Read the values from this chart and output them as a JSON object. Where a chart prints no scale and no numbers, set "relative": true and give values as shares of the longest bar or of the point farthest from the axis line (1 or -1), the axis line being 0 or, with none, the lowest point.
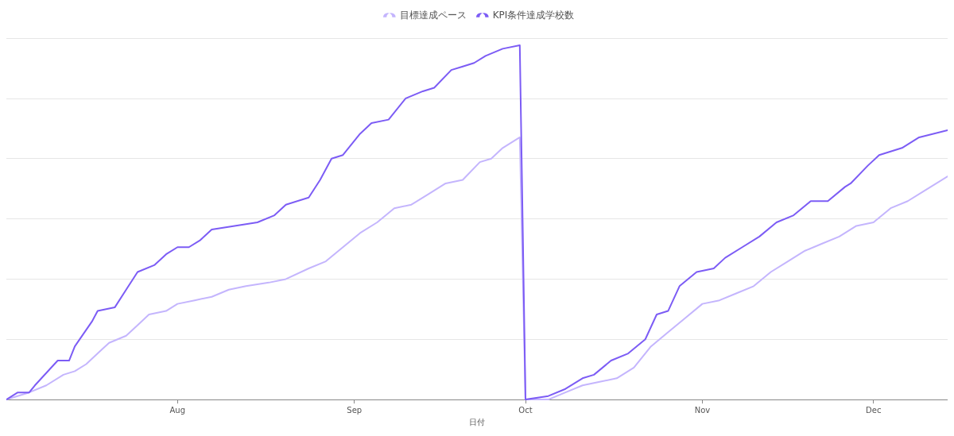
{
  "chart_data": {
    "type": "line",
    "relative": true,
    "xlabel": "日付",
    "legend": "top",
    "grid": "y",
    "tick_labels": "x",
    "xlim": [
      "--07-02",
      "--12-14"
    ],
    "xticks": [
      {
        "value": "--08-01",
        "label": "Aug"
      },
      {
        "value": "--09-01",
        "label": "Sep"
      },
      {
        "value": "--10-01",
        "label": "Oct"
      },
      {
        "value": "--11-01",
        "label": "Nov"
      },
      {
        "value": "--12-01",
        "label": "Dec"
      }
    ],
    "series": [
      {
        "name": "目標達成ペース",
        "color": "#c4b5fd",
        "x": [
          "--07-02",
          "--07-06",
          "--07-09",
          "--07-12",
          "--07-14",
          "--07-16",
          "--07-18",
          "--07-20",
          "--07-23",
          "--07-25",
          "--07-27",
          "--07-30",
          "--08-01",
          "--08-04",
          "--08-07",
          "--08-10",
          "--08-13",
          "--08-17",
          "--08-20",
          "--08-24",
          "--08-27",
          "--08-30",
          "--09-02",
          "--09-05",
          "--09-08",
          "--09-11",
          "--09-14",
          "--09-17",
          "--09-20",
          "--09-23",
          "--09-25",
          "--09-27",
          "--09-29",
          "--09-30",
          "--10-01",
          "--10-05",
          "--10-08",
          "--10-11",
          "--10-14",
          "--10-17",
          "--10-20",
          "--10-23",
          "--10-26",
          "--10-29",
          "--11-01",
          "--11-04",
          "--11-07",
          "--11-10",
          "--11-13",
          "--11-16",
          "--11-19",
          "--11-22",
          "--11-25",
          "--11-28",
          "--12-01",
          "--12-04",
          "--12-07",
          "--12-10",
          "--12-14"
        ],
        "values": [
          0,
          0.02,
          0.04,
          0.07,
          0.08,
          0.1,
          0.13,
          0.16,
          0.18,
          0.21,
          0.24,
          0.25,
          0.27,
          0.28,
          0.29,
          0.31,
          0.32,
          0.33,
          0.34,
          0.37,
          0.39,
          0.43,
          0.47,
          0.5,
          0.54,
          0.55,
          0.58,
          0.61,
          0.62,
          0.67,
          0.68,
          0.71,
          0.73,
          0.74,
          0,
          0,
          0.02,
          0.04,
          0.05,
          0.06,
          0.09,
          0.15,
          0.19,
          0.23,
          0.27,
          0.28,
          0.3,
          0.32,
          0.36,
          0.39,
          0.42,
          0.44,
          0.46,
          0.49,
          0.5,
          0.54,
          0.56,
          0.59,
          0.63
        ]
      },
      {
        "name": "KPI条件達成学校数",
        "color": "#7c5cf5",
        "x": [
          "--07-02",
          "--07-04",
          "--07-06",
          "--07-07",
          "--07-11",
          "--07-13",
          "--07-14",
          "--07-17",
          "--07-18",
          "--07-21",
          "--07-23",
          "--07-25",
          "--07-28",
          "--07-30",
          "--08-01",
          "--08-03",
          "--08-05",
          "--08-07",
          "--08-11",
          "--08-15",
          "--08-18",
          "--08-20",
          "--08-24",
          "--08-26",
          "--08-28",
          "--08-30",
          "--09-02",
          "--09-04",
          "--09-07",
          "--09-10",
          "--09-13",
          "--09-15",
          "--09-18",
          "--09-20",
          "--09-22",
          "--09-24",
          "--09-27",
          "--09-30",
          "--10-01",
          "--10-05",
          "--10-08",
          "--10-11",
          "--10-13",
          "--10-16",
          "--10-19",
          "--10-22",
          "--10-24",
          "--10-26",
          "--10-28",
          "--10-31",
          "--11-03",
          "--11-05",
          "--11-08",
          "--11-11",
          "--11-14",
          "--11-17",
          "--11-20",
          "--11-23",
          "--11-26",
          "--11-27",
          "--11-30",
          "--12-02",
          "--12-06",
          "--12-09",
          "--12-14"
        ],
        "values": [
          0,
          0.02,
          0.02,
          0.04,
          0.11,
          0.11,
          0.15,
          0.22,
          0.25,
          0.26,
          0.31,
          0.36,
          0.38,
          0.41,
          0.43,
          0.43,
          0.45,
          0.48,
          0.49,
          0.5,
          0.52,
          0.55,
          0.57,
          0.62,
          0.68,
          0.69,
          0.75,
          0.78,
          0.79,
          0.85,
          0.87,
          0.88,
          0.93,
          0.94,
          0.95,
          0.97,
          0.99,
          1,
          0,
          0.01,
          0.03,
          0.06,
          0.07,
          0.11,
          0.13,
          0.17,
          0.24,
          0.25,
          0.32,
          0.36,
          0.37,
          0.4,
          0.43,
          0.46,
          0.5,
          0.52,
          0.56,
          0.56,
          0.6,
          0.61,
          0.66,
          0.69,
          0.71,
          0.74,
          0.76
        ]
      }
    ]
  }
}
